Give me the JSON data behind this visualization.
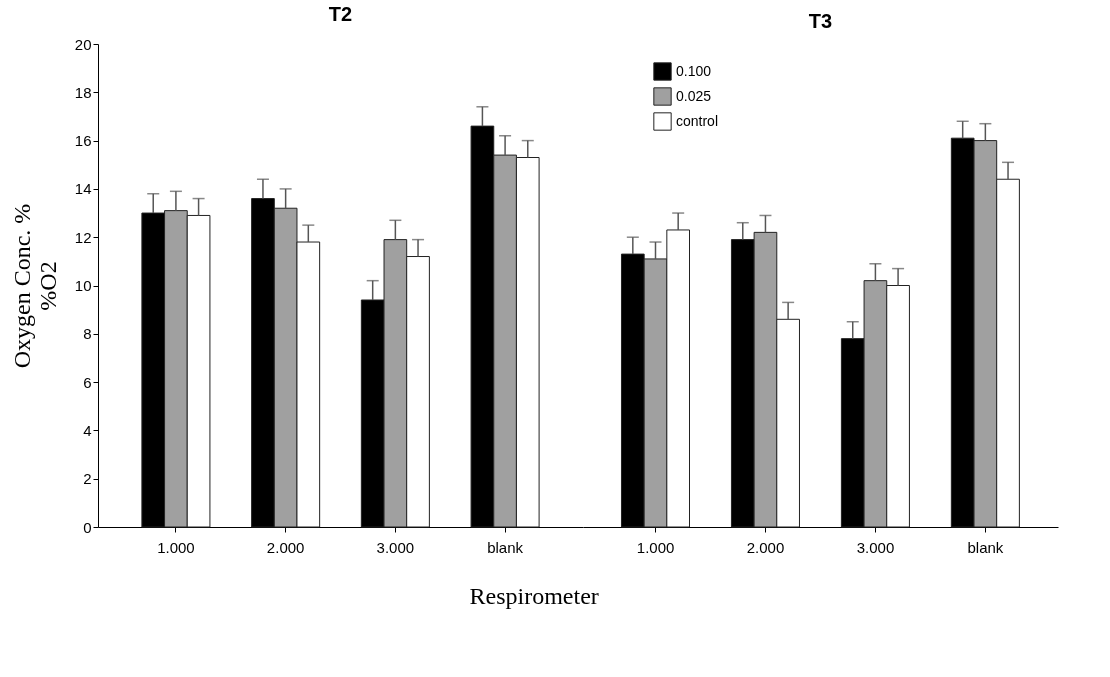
{
  "chart_data": [
    {
      "type": "bar",
      "title": "T2",
      "xlabel": "Respirometer",
      "ylabel": "Oxygen Conc. %\n%O2",
      "categories": [
        "1.000",
        "2.000",
        "3.000",
        "blank"
      ],
      "series": [
        {
          "color": "#000000",
          "values": [
            13.0,
            13.6,
            9.4,
            16.6
          ],
          "errors": [
            [
              13.0,
              13.8
            ],
            [
              13.6,
              14.4
            ],
            [
              9.4,
              10.2
            ],
            [
              16.6,
              17.4
            ]
          ]
        },
        {
          "color": "#a0a0a0",
          "values": [
            13.1,
            13.2,
            11.9,
            15.4
          ],
          "errors": [
            [
              13.1,
              13.9
            ],
            [
              13.2,
              14.0
            ],
            [
              11.9,
              12.7
            ],
            [
              15.4,
              16.2
            ]
          ]
        },
        {
          "color": "#ffffff",
          "values": [
            12.9,
            11.8,
            11.2,
            15.3
          ],
          "errors": [
            [
              12.9,
              13.6
            ],
            [
              11.8,
              12.5
            ],
            [
              11.2,
              11.9
            ],
            [
              15.3,
              16.0
            ]
          ]
        }
      ],
      "ylim": [
        0,
        20
      ],
      "yticks": [
        0,
        2,
        4,
        6,
        8,
        10,
        12,
        14,
        16,
        18,
        20
      ],
      "grid": false,
      "legend": false
    },
    {
      "type": "bar",
      "title": "T3",
      "categories": [
        "1.000",
        "2.000",
        "3.000",
        "blank"
      ],
      "series": [
        {
          "name": "0.100",
          "color": "#000000",
          "values": [
            11.3,
            11.9,
            7.8,
            16.1
          ],
          "errors": [
            [
              11.3,
              12.0
            ],
            [
              11.9,
              12.6
            ],
            [
              7.8,
              8.5
            ],
            [
              16.1,
              16.8
            ]
          ]
        },
        {
          "name": "0.025",
          "color": "#a0a0a0",
          "values": [
            11.1,
            12.2,
            10.2,
            16.0
          ],
          "errors": [
            [
              11.1,
              11.8
            ],
            [
              12.2,
              12.9
            ],
            [
              10.2,
              10.9
            ],
            [
              16.0,
              16.7
            ]
          ]
        },
        {
          "name": "control",
          "color": "#ffffff",
          "values": [
            12.3,
            8.6,
            10.0,
            14.4
          ],
          "errors": [
            [
              12.3,
              13.0
            ],
            [
              8.6,
              9.3
            ],
            [
              10.0,
              10.7
            ],
            [
              14.4,
              15.1
            ]
          ]
        }
      ],
      "ylim": [
        0,
        20
      ],
      "yticks": [
        0,
        2,
        4,
        6,
        8,
        10,
        12,
        14,
        16,
        18,
        20
      ],
      "grid": false,
      "legend": "top left",
      "tick_labels": "x"
    }
  ]
}
